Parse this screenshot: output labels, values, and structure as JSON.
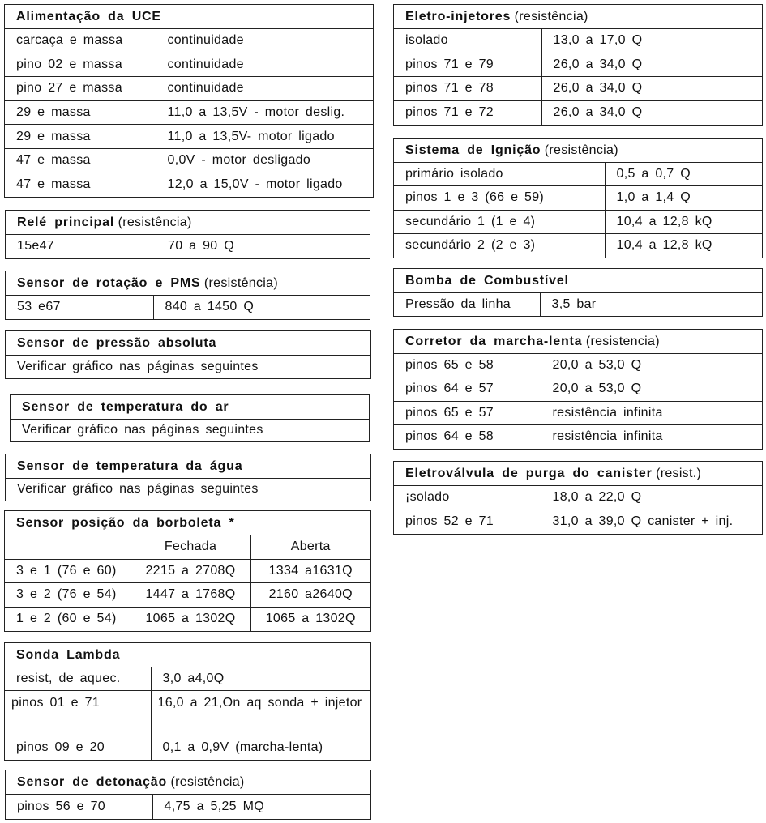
{
  "blocks": [
    {
      "id": "alimentacao-uce",
      "title": "Alimentação da UCE",
      "subtitle": "",
      "rows": [
        [
          "carcaça e massa",
          "continuidade"
        ],
        [
          "pino 02 e massa",
          "continuidade"
        ],
        [
          "pino 27 e massa",
          "continuidade"
        ],
        [
          "29 e massa",
          "11,0 a 13,5V - motor deslig."
        ],
        [
          "29 e massa",
          "11,0 a 13,5V- motor ligado"
        ],
        [
          "47 e massa",
          "0,0V - motor desligado"
        ],
        [
          "47 e massa",
          "12,0 a 15,0V - motor ligado"
        ]
      ]
    },
    {
      "id": "rele-principal",
      "title": "Relé principal",
      "subtitle": "(resistência)",
      "rows": [
        [
          "15e47",
          "70 a 90 Q"
        ]
      ]
    },
    {
      "id": "sensor-rotacao-pms",
      "title": "Sensor de rotação e PMS",
      "subtitle": "(resistência)",
      "rows": [
        [
          "53 e67",
          "840 a 1450 Q"
        ]
      ]
    },
    {
      "id": "sensor-pressao-absoluta",
      "title": "Sensor de pressão absoluta",
      "subtitle": "",
      "rows": [
        [
          "Verificar gráfico nas páginas seguintes"
        ]
      ]
    },
    {
      "id": "sensor-temperatura-ar",
      "title": "Sensor de temperatura do ar",
      "subtitle": "",
      "rows": [
        [
          "Verificar gráfico nas páginas seguintes"
        ]
      ]
    },
    {
      "id": "sensor-temperatura-agua",
      "title": "Sensor de temperatura da água",
      "subtitle": "",
      "rows": [
        [
          "Verificar gráfico nas páginas seguintes"
        ]
      ]
    },
    {
      "id": "sensor-posicao-borboleta",
      "title": "Sensor posição da borboleta *",
      "subtitle": "",
      "rows": [
        [
          "",
          "Fechada",
          "Aberta"
        ],
        [
          "3 e 1 (76 e 60)",
          "2215 a 2708Q",
          "1334 a1631Q"
        ],
        [
          "3 e 2 (76 e 54)",
          "1447 a 1768Q",
          "2160 a2640Q"
        ],
        [
          "1 e 2 (60 e 54)",
          "1065 a 1302Q",
          "1065 a 1302Q"
        ]
      ]
    },
    {
      "id": "sonda-lambda",
      "title": "Sonda Lambda",
      "subtitle": "",
      "rows": [
        [
          "resist, de aquec.",
          "3,0 a4,0Q"
        ],
        [
          "pinos 01 e 71",
          "16,0 a 21,On aq sonda + injetor"
        ],
        [
          "pinos 09 e 20",
          "0,1 a 0,9V (marcha-lenta)"
        ]
      ]
    },
    {
      "id": "sensor-detonacao",
      "title": "Sensor de detonação",
      "subtitle": "(resistência)",
      "rows": [
        [
          "pinos 56 e 70",
          "4,75 a 5,25 MQ"
        ]
      ]
    },
    {
      "id": "eletro-injetores",
      "title": "Eletro-injetores",
      "subtitle": "(resistência)",
      "rows": [
        [
          "isolado",
          "13,0 a 17,0 Q"
        ],
        [
          "pinos 71 e 79",
          "26,0 a 34,0 Q"
        ],
        [
          "pinos 71 e 78",
          "26,0 a 34,0 Q"
        ],
        [
          "pinos 71 e 72",
          "26,0 a 34,0 Q"
        ]
      ]
    },
    {
      "id": "sistema-ignicao",
      "title": "Sistema de Ignição",
      "subtitle": "(resistência)",
      "rows": [
        [
          "primário isolado",
          "0,5 a 0,7 Q"
        ],
        [
          "pinos 1 e 3 (66 e 59)",
          "1,0 a 1,4 Q"
        ],
        [
          "secundário 1 (1 e 4)",
          "10,4 a 12,8 kQ"
        ],
        [
          "secundário 2 (2 e 3)",
          "10,4 a 12,8 kQ"
        ]
      ]
    },
    {
      "id": "bomba-combustivel",
      "title": "Bomba de Combustível",
      "subtitle": "",
      "rows": [
        [
          "Pressão da linha",
          "3,5 bar"
        ]
      ]
    },
    {
      "id": "corretor-marcha-lenta",
      "title": "Corretor da marcha-lenta",
      "subtitle": "(resistencia)",
      "rows": [
        [
          "pinos 65 e 58",
          "20,0 a 53,0 Q"
        ],
        [
          "pinos 64 e 57",
          "20,0 a 53,0 Q"
        ],
        [
          "pinos 65 e 57",
          "resistência infinita"
        ],
        [
          "pinos 64 e 58",
          "resistência infinita"
        ]
      ]
    },
    {
      "id": "eletrovalvula-purga-canister",
      "title": "Eletroválvula de purga do canister",
      "subtitle": "(resist.)",
      "rows": [
        [
          "¡solado",
          "18,0 a 22,0 Q"
        ],
        [
          "pinos 52 e 71",
          "31,0 a 39,0 Q canister + inj."
        ]
      ]
    }
  ]
}
